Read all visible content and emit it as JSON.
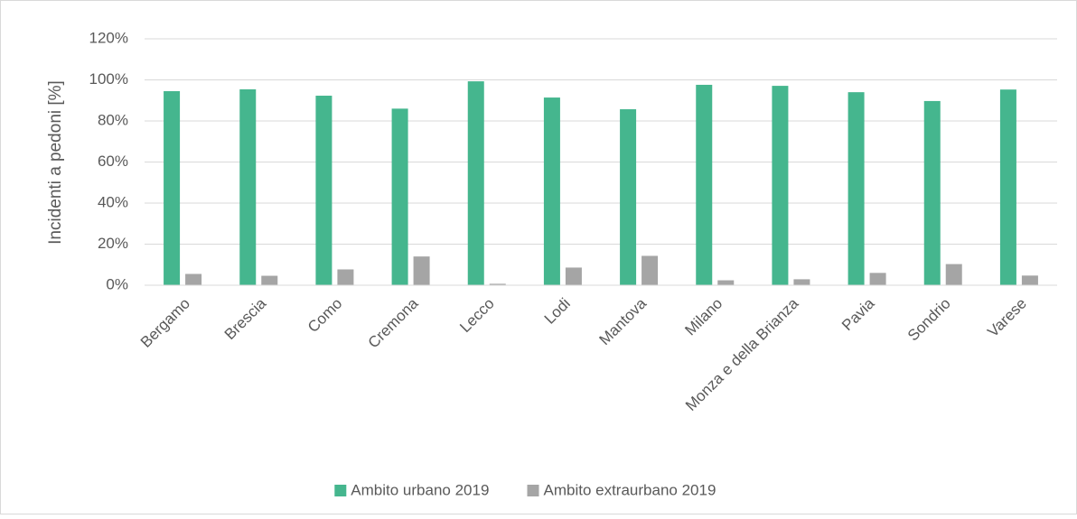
{
  "chart_data": {
    "type": "bar",
    "y_label": "Incidenti a pedoni [%]",
    "categories": [
      "Bergamo",
      "Brescia",
      "Como",
      "Cremona",
      "Lecco",
      "Lodi",
      "Mantova",
      "Milano",
      "Monza e della Brianza",
      "Pavia",
      "Sondrio",
      "Varese"
    ],
    "series": [
      {
        "name": "Ambito urbano 2019",
        "color": "#45b68e",
        "values": [
          94.5,
          95.4,
          92.3,
          86,
          99.3,
          91.4,
          85.7,
          97.6,
          97.1,
          94,
          89.7,
          95.3
        ]
      },
      {
        "name": "Ambito extraurbano 2019",
        "color": "#a5a5a5",
        "values": [
          5.5,
          4.6,
          7.7,
          14,
          0.7,
          8.6,
          14.3,
          2.4,
          2.9,
          6,
          10.3,
          4.7
        ]
      }
    ],
    "ylim": [
      0,
      120
    ],
    "yticks": [
      {
        "value": 0,
        "label": "0%"
      },
      {
        "value": 20,
        "label": "20%"
      },
      {
        "value": 40,
        "label": "40%"
      },
      {
        "value": 60,
        "label": "60%"
      },
      {
        "value": 80,
        "label": "80%"
      },
      {
        "value": 100,
        "label": "100%"
      },
      {
        "value": 120,
        "label": "120%"
      }
    ],
    "grid": true,
    "legend": "bottom"
  }
}
